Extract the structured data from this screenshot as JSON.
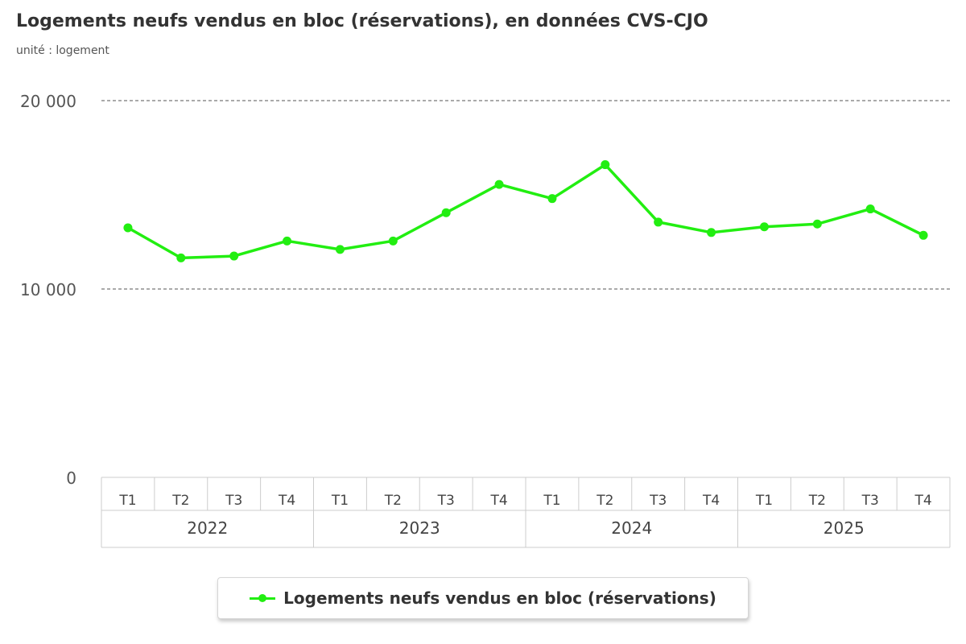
{
  "header": {
    "title": "Logements neufs vendus en bloc (réservations), en données CVS-CJO",
    "subtitle": "unité : logement"
  },
  "legend": {
    "label": "Logements neufs vendus en bloc (réservations)"
  },
  "colors": {
    "series": "#22ee11",
    "grid": "#555555",
    "axis_text": "#555555",
    "axis_box": "#cccccc",
    "x_labels": "#444444"
  },
  "chart_data": {
    "type": "line",
    "title": "Logements neufs vendus en bloc (réservations), en données CVS-CJO",
    "subtitle": "unité : logement",
    "xlabel": "",
    "ylabel": "",
    "ylim": [
      0,
      20000
    ],
    "yticks": [
      0,
      10000,
      20000
    ],
    "ytick_labels": [
      "0",
      "10 000",
      "20 000"
    ],
    "grid": true,
    "legend_position": "bottom-center",
    "categories": [
      "T1",
      "T2",
      "T3",
      "T4",
      "T1",
      "T2",
      "T3",
      "T4",
      "T1",
      "T2",
      "T3",
      "T4",
      "T1",
      "T2",
      "T3",
      "T4"
    ],
    "years": [
      "2022",
      "2023",
      "2024",
      "2025"
    ],
    "series": [
      {
        "name": "Logements neufs vendus en bloc (réservations)",
        "values": [
          13250,
          11650,
          11750,
          12550,
          12100,
          12550,
          14050,
          15550,
          14800,
          16600,
          13550,
          13000,
          13300,
          13450,
          14250,
          12850
        ]
      }
    ]
  }
}
